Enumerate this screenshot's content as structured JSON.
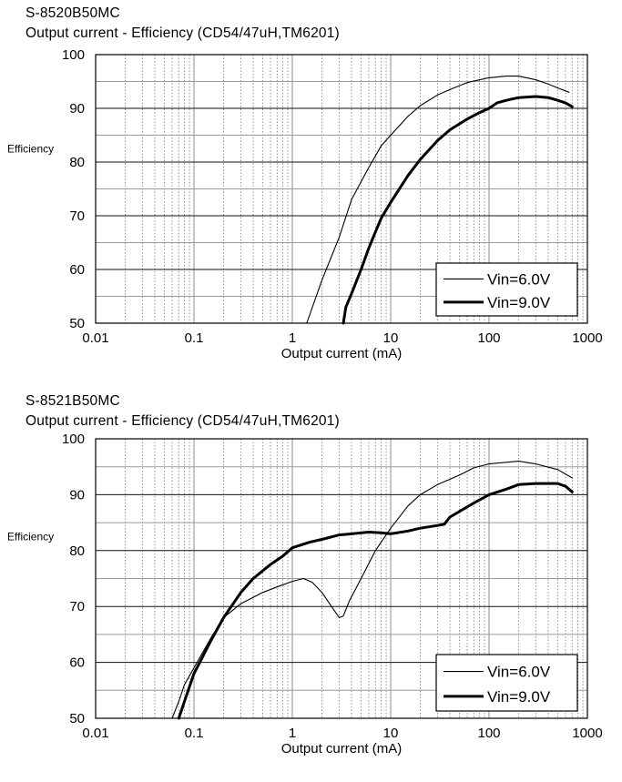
{
  "chart_data": [
    {
      "type": "line",
      "title": "S-8520B50MC",
      "subtitle": "Output current - Efficiency (CD54/47uH,TM6201)",
      "xlabel": "Output current (mA)",
      "ylabel": "Efficiency",
      "xscale": "log",
      "xlim": [
        0.01,
        1000
      ],
      "ylim": [
        50,
        100
      ],
      "x_ticks": [
        "0.01",
        "0.1",
        "1",
        "10",
        "100",
        "1000"
      ],
      "y_ticks": [
        "50",
        "60",
        "70",
        "80",
        "90",
        "100"
      ],
      "grid": true,
      "legend_position": "bottom-right",
      "series": [
        {
          "name": "Vin=6.0V",
          "line": "thin",
          "points": [
            [
              1.4,
              50
            ],
            [
              2,
              58
            ],
            [
              3,
              66
            ],
            [
              4,
              73
            ],
            [
              6,
              79
            ],
            [
              8,
              83
            ],
            [
              10,
              85
            ],
            [
              15,
              88.5
            ],
            [
              20,
              90.5
            ],
            [
              30,
              92.5
            ],
            [
              40,
              93.5
            ],
            [
              60,
              94.8
            ],
            [
              80,
              95.3
            ],
            [
              100,
              95.7
            ],
            [
              150,
              96
            ],
            [
              200,
              96
            ],
            [
              300,
              95.3
            ],
            [
              400,
              94.5
            ],
            [
              500,
              93.8
            ],
            [
              650,
              93
            ]
          ]
        },
        {
          "name": "Vin=9.0V",
          "line": "thick",
          "points": [
            [
              3.3,
              50
            ],
            [
              3.5,
              53
            ],
            [
              4,
              55.5
            ],
            [
              5,
              60
            ],
            [
              6,
              64
            ],
            [
              7,
              67
            ],
            [
              8,
              69.5
            ],
            [
              10,
              72.5
            ],
            [
              15,
              77.5
            ],
            [
              20,
              80.5
            ],
            [
              30,
              84
            ],
            [
              40,
              86
            ],
            [
              60,
              88
            ],
            [
              80,
              89.2
            ],
            [
              100,
              90
            ],
            [
              120,
              91
            ],
            [
              150,
              91.5
            ],
            [
              200,
              92
            ],
            [
              300,
              92.2
            ],
            [
              400,
              92
            ],
            [
              500,
              91.5
            ],
            [
              600,
              91
            ],
            [
              700,
              90.3
            ]
          ]
        }
      ]
    },
    {
      "type": "line",
      "title": "S-8521B50MC",
      "subtitle": "Output current - Efficiency (CD54/47uH,TM6201)",
      "xlabel": "Output current (mA)",
      "ylabel": "Efficiency",
      "xscale": "log",
      "xlim": [
        0.01,
        1000
      ],
      "ylim": [
        50,
        100
      ],
      "x_ticks": [
        "0.01",
        "0.1",
        "1",
        "10",
        "100",
        "1000"
      ],
      "y_ticks": [
        "50",
        "60",
        "70",
        "80",
        "90",
        "100"
      ],
      "grid": true,
      "legend_position": "bottom-right",
      "series": [
        {
          "name": "Vin=6.0V",
          "line": "thin",
          "points": [
            [
              0.06,
              50
            ],
            [
              0.07,
              53
            ],
            [
              0.08,
              56
            ],
            [
              0.1,
              59
            ],
            [
              0.15,
              64.5
            ],
            [
              0.2,
              68
            ],
            [
              0.3,
              70.5
            ],
            [
              0.5,
              72.5
            ],
            [
              0.7,
              73.5
            ],
            [
              1,
              74.5
            ],
            [
              1.3,
              75
            ],
            [
              1.6,
              74.3
            ],
            [
              2,
              72.5
            ],
            [
              2.5,
              70
            ],
            [
              3,
              68
            ],
            [
              3.3,
              68.3
            ],
            [
              3.8,
              71
            ],
            [
              5,
              75
            ],
            [
              7,
              80
            ],
            [
              10,
              84
            ],
            [
              15,
              88
            ],
            [
              20,
              90
            ],
            [
              30,
              91.8
            ],
            [
              50,
              93.5
            ],
            [
              70,
              94.8
            ],
            [
              100,
              95.5
            ],
            [
              150,
              95.8
            ],
            [
              200,
              96
            ],
            [
              300,
              95.5
            ],
            [
              500,
              94.5
            ],
            [
              700,
              93
            ]
          ]
        },
        {
          "name": "Vin=9.0V",
          "line": "thick",
          "points": [
            [
              0.07,
              50
            ],
            [
              0.08,
              53
            ],
            [
              0.1,
              58
            ],
            [
              0.15,
              64
            ],
            [
              0.2,
              68
            ],
            [
              0.3,
              72.5
            ],
            [
              0.4,
              75
            ],
            [
              0.6,
              77.5
            ],
            [
              0.8,
              79
            ],
            [
              1,
              80.5
            ],
            [
              1.5,
              81.5
            ],
            [
              2,
              82
            ],
            [
              3,
              82.8
            ],
            [
              4,
              83
            ],
            [
              6,
              83.3
            ],
            [
              8,
              83.2
            ],
            [
              10,
              83
            ],
            [
              15,
              83.5
            ],
            [
              20,
              84
            ],
            [
              30,
              84.5
            ],
            [
              35,
              84.7
            ],
            [
              40,
              86
            ],
            [
              50,
              87
            ],
            [
              70,
              88.5
            ],
            [
              100,
              90
            ],
            [
              150,
              91
            ],
            [
              200,
              91.8
            ],
            [
              300,
              92
            ],
            [
              500,
              92
            ],
            [
              600,
              91.5
            ],
            [
              700,
              90.5
            ]
          ]
        }
      ]
    }
  ]
}
